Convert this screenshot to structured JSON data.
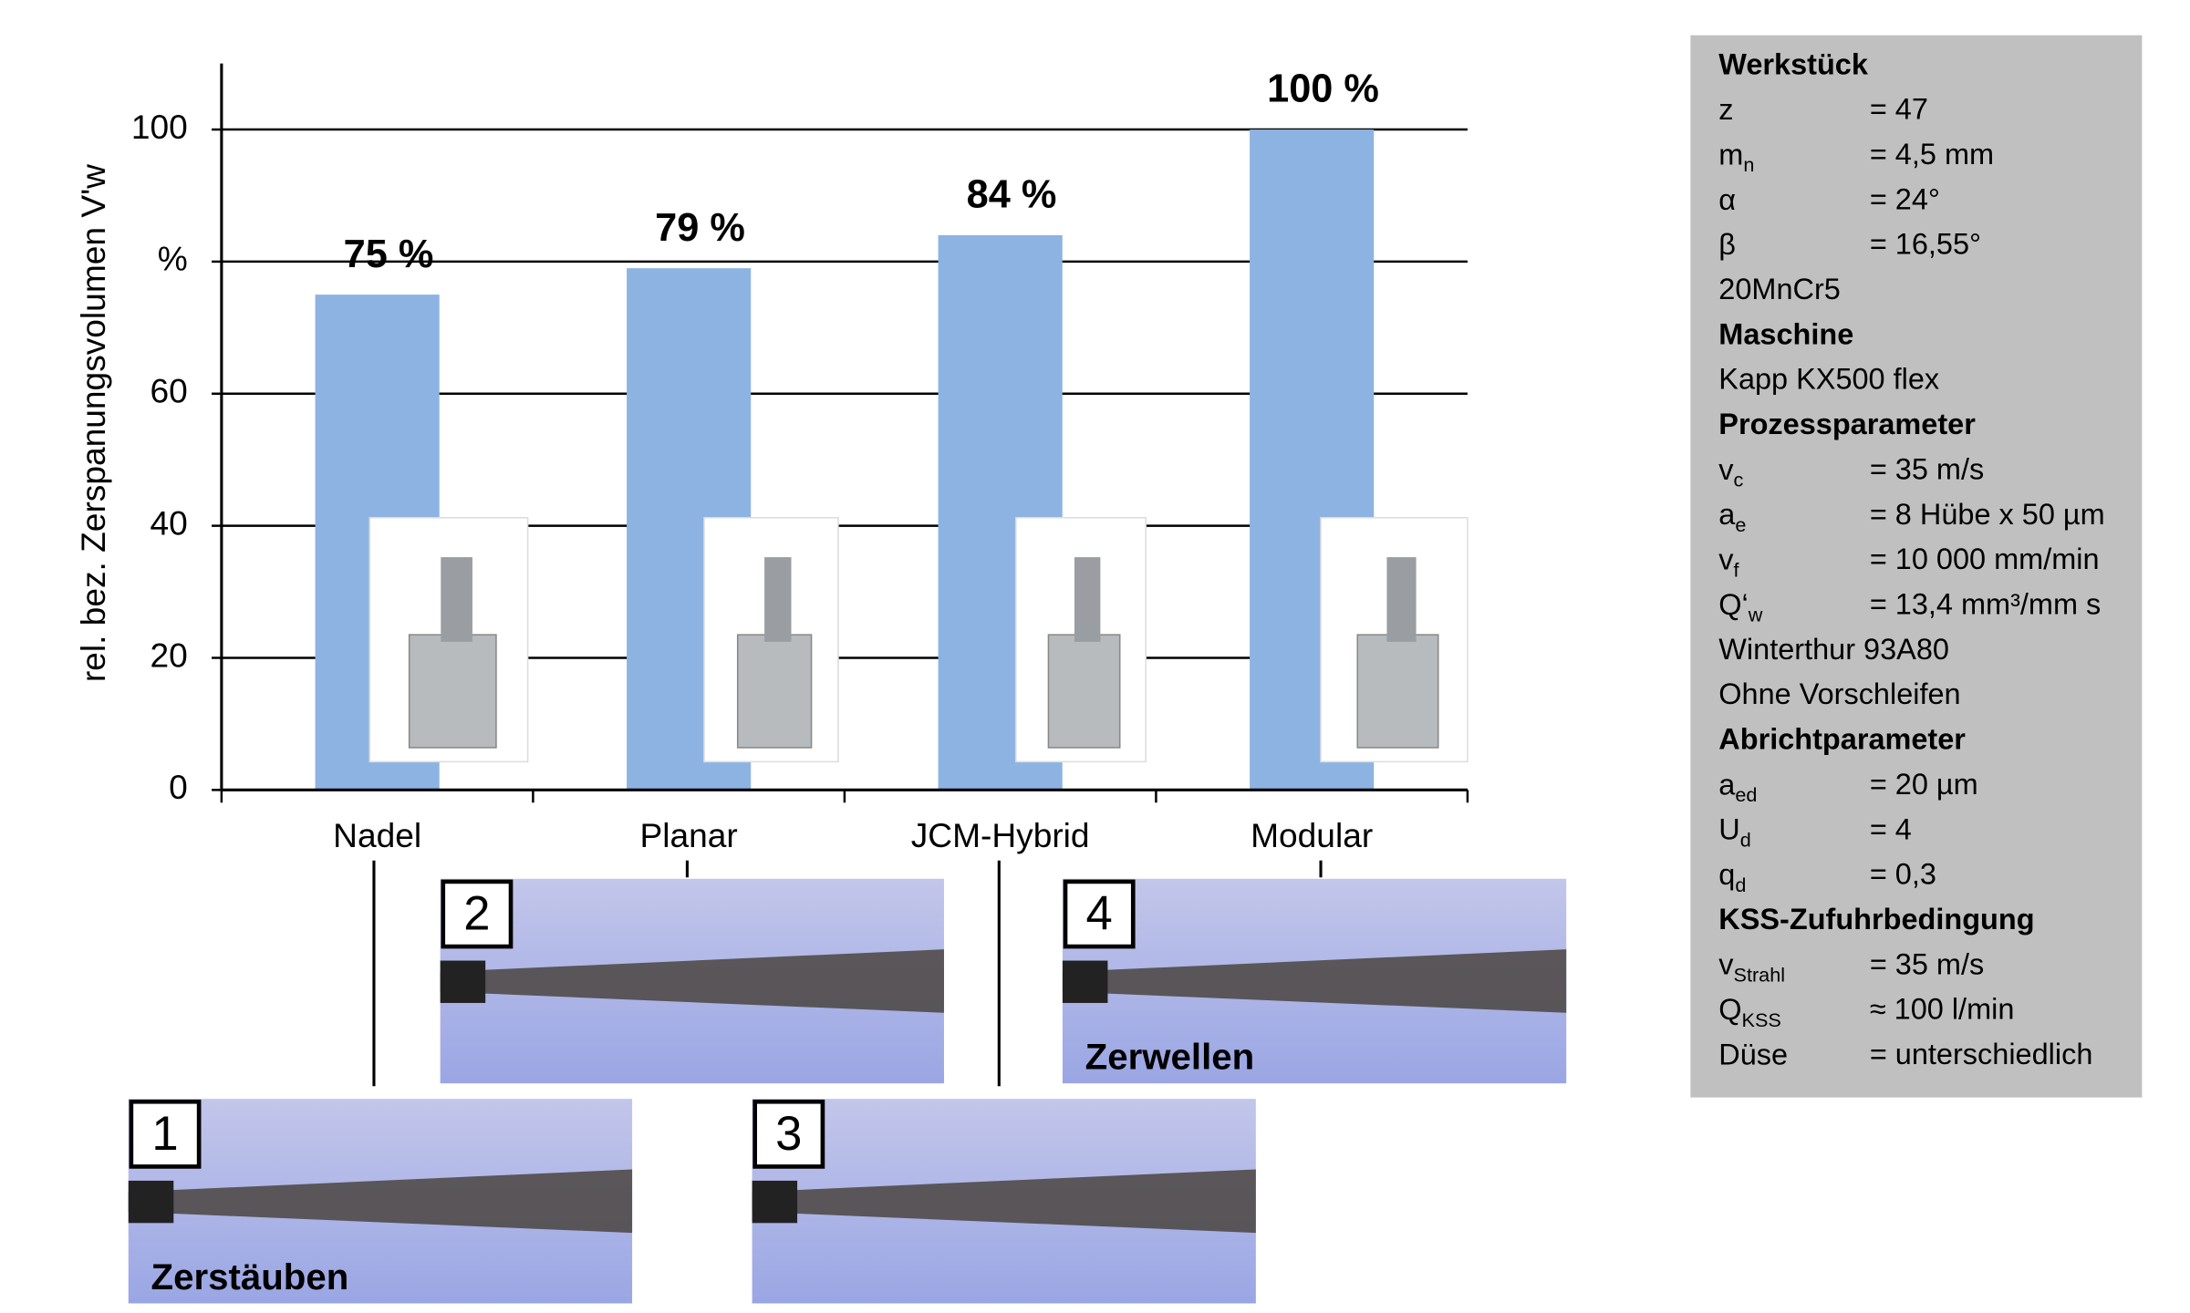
{
  "chart_data": {
    "type": "bar",
    "y_label": "rel. bez. Zerspanungsvolumen V'w",
    "categories": [
      "Nadel",
      "Planar",
      "JCM-Hybrid",
      "Modular"
    ],
    "values": [
      75,
      79,
      84,
      100
    ],
    "value_labels": [
      "75 %",
      "79 %",
      "84 %",
      "100 %"
    ],
    "color": "#8db3e2",
    "ylim": [
      0,
      110
    ],
    "yticks": [
      0,
      20,
      40,
      60,
      {
        "value": 80,
        "label": "%"
      },
      100
    ],
    "grid": true
  },
  "spray_images": [
    {
      "number": "1",
      "caption": "Zerstäuben"
    },
    {
      "number": "2"
    },
    {
      "number": "3"
    },
    {
      "number": "4",
      "caption": "Zerwellen"
    }
  ],
  "parameters": [
    {
      "heading": "Werkstück"
    },
    {
      "symbol": "z",
      "value": "= 47"
    },
    {
      "symbol": "m",
      "sub": "n",
      "value": "= 4,5 mm"
    },
    {
      "symbol": "α",
      "value": "= 24°"
    },
    {
      "symbol": "β",
      "value": "= 16,55°"
    },
    {
      "text": "20MnCr5"
    },
    {
      "heading": "Maschine"
    },
    {
      "text": "Kapp KX500 flex"
    },
    {
      "heading": "Prozessparameter"
    },
    {
      "symbol": "v",
      "sub": "c",
      "value": "= 35 m/s"
    },
    {
      "symbol": "a",
      "sub": "e",
      "value": "= 8 Hübe x 50 µm"
    },
    {
      "symbol": "v",
      "sub": "f",
      "value": "= 10 000 mm/min"
    },
    {
      "symbol": "Q‘",
      "sub": "w",
      "value": "= 13,4 mm³/mm s"
    },
    {
      "text": "Winterthur 93A80"
    },
    {
      "text": "Ohne Vorschleifen"
    },
    {
      "heading": "Abrichtparameter"
    },
    {
      "symbol": "a",
      "sub": "ed",
      "value": "= 20 µm"
    },
    {
      "symbol": "U",
      "sub": "d",
      "value": "= 4"
    },
    {
      "symbol": "q",
      "sub": "d",
      "value": "= 0,3"
    },
    {
      "heading": "KSS-Zufuhrbedingung"
    },
    {
      "symbol": "v",
      "sub": "Strahl",
      "value": "= 35 m/s"
    },
    {
      "symbol": "Q",
      "sub": "KSS",
      "value": "≈ 100 l/min"
    },
    {
      "symbol": "Düse",
      "value": "= unterschiedlich"
    }
  ]
}
